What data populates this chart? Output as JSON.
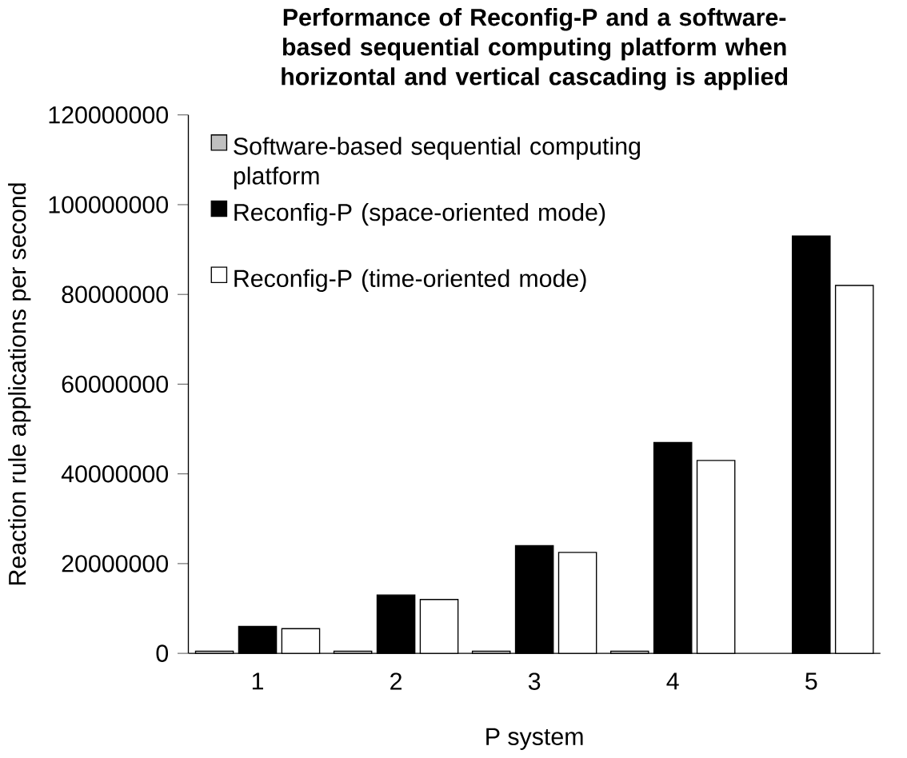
{
  "chart_data": {
    "type": "bar",
    "title": "Performance of Reconfig-P and a software-based sequential computing platform when horizontal and vertical cascading is applied",
    "xlabel": "P system",
    "ylabel": "Reaction rule applications per second",
    "categories": [
      "1",
      "2",
      "3",
      "4",
      "5"
    ],
    "series": [
      {
        "name": "Software-based sequential computing platform",
        "color": "#c0c0c0",
        "values": [
          500000,
          500000,
          500000,
          500000,
          null
        ]
      },
      {
        "name": "Reconfig-P (space-oriented mode)",
        "color": "#000000",
        "values": [
          6000000,
          13000000,
          24000000,
          47000000,
          93000000
        ]
      },
      {
        "name": "Reconfig-P (time-oriented mode)",
        "color": "#ffffff",
        "values": [
          5500000,
          12000000,
          22500000,
          43000000,
          82000000
        ]
      }
    ],
    "ylim": [
      0,
      120000000
    ],
    "yticks": [
      0,
      20000000,
      40000000,
      60000000,
      80000000,
      100000000,
      120000000
    ],
    "legend": "top left",
    "grid": false
  }
}
